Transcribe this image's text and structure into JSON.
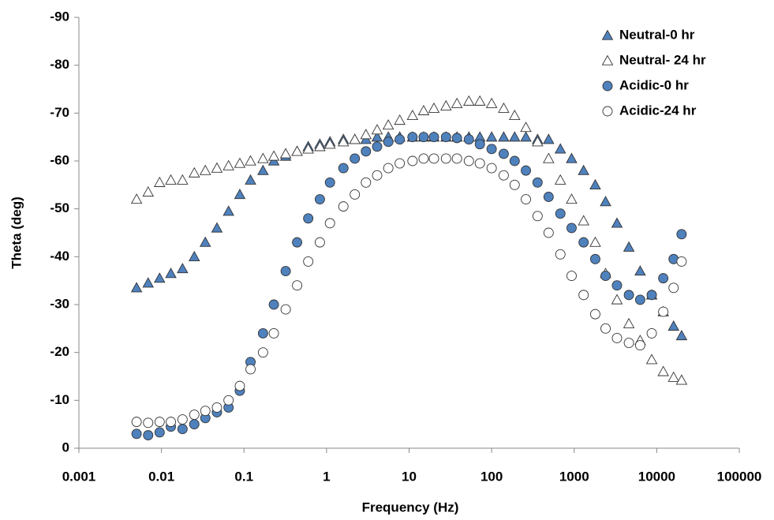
{
  "chart_data": {
    "type": "scatter",
    "x_label": "Frequency (Hz)",
    "y_label": "Theta (deg)",
    "x_scale": "log",
    "xlim": [
      0.001,
      100000
    ],
    "xticks": [
      0.001,
      0.01,
      0.1,
      1,
      10,
      100,
      1000,
      10000,
      100000
    ],
    "ylim": [
      0,
      -90
    ],
    "yticks": [
      0,
      -10,
      -20,
      -30,
      -40,
      -50,
      -60,
      -70,
      -80,
      -90
    ],
    "grid": false,
    "legend": "top-right",
    "x": [
      0.005,
      0.0069,
      0.0095,
      0.013,
      0.018,
      0.025,
      0.034,
      0.047,
      0.065,
      0.089,
      0.12,
      0.17,
      0.23,
      0.32,
      0.44,
      0.6,
      0.83,
      1.1,
      1.6,
      2.2,
      3,
      4.1,
      5.6,
      7.7,
      11,
      15,
      20,
      28,
      38,
      53,
      72,
      100,
      140,
      190,
      260,
      360,
      490,
      680,
      930,
      1300,
      1800,
      2400,
      3300,
      4600,
      6300,
      8700,
      12000,
      16000,
      20000
    ],
    "series": [
      {
        "name": "Neutral-0 hr",
        "marker": "triangle",
        "color": "#4f81bd",
        "values": [
          -33.5,
          -34.5,
          -35.5,
          -36.5,
          -37.5,
          -40,
          -43,
          -46,
          -49.5,
          -53,
          -56,
          -58,
          -60,
          -61,
          -62,
          -63,
          -63.5,
          -64,
          -64.5,
          -64.5,
          -64.5,
          -65,
          -65,
          -65,
          -65,
          -65,
          -65,
          -65,
          -65,
          -65,
          -65,
          -65,
          -65,
          -65,
          -65,
          -64.5,
          -64.5,
          -62.5,
          -60.5,
          -58,
          -55,
          -51.5,
          -47,
          -42,
          -37,
          -32,
          -28.5,
          -25.5,
          -23.5
        ]
      },
      {
        "name": "Neutral- 24 hr",
        "marker": "triangle",
        "color": "#ffffff",
        "values": [
          -52,
          -53.5,
          -55.5,
          -56,
          -56,
          -57.5,
          -58,
          -58.5,
          -59,
          -59.5,
          -60,
          -60.5,
          -61,
          -61.5,
          -62,
          -62.5,
          -63,
          -63.5,
          -64,
          -64.5,
          -65.5,
          -66.5,
          -67.5,
          -68.5,
          -69.5,
          -70.5,
          -71,
          -71.5,
          -72,
          -72.5,
          -72.5,
          -72,
          -71,
          -69.5,
          -67,
          -64,
          -60.5,
          -56,
          -52,
          -47.5,
          -43,
          -36.5,
          -31,
          -26,
          -22.5,
          -18.5,
          -16,
          -14.8,
          -14.2
        ]
      },
      {
        "name": "Acidic-0 hr",
        "marker": "circle",
        "color": "#4f81bd",
        "values": [
          -3,
          -2.7,
          -3.3,
          -4.5,
          -4,
          -5,
          -6.3,
          -7.5,
          -8.5,
          -12,
          -18,
          -24,
          -30,
          -37,
          -43,
          -48,
          -52,
          -55.5,
          -58.5,
          -60.5,
          -62,
          -63,
          -64,
          -64.5,
          -65,
          -65,
          -65,
          -65,
          -64.8,
          -64.5,
          -63.5,
          -62.5,
          -61.5,
          -60,
          -58,
          -55.5,
          -52.5,
          -49,
          -46,
          -43,
          -39.5,
          -36,
          -34,
          -32,
          -31,
          -32,
          -35.5,
          -39.5,
          -44.7
        ]
      },
      {
        "name": "Acidic-24 hr",
        "marker": "circle",
        "color": "#ffffff",
        "values": [
          -5.5,
          -5.3,
          -5.5,
          -5.5,
          -6,
          -7,
          -7.8,
          -8.5,
          -10,
          -13,
          -16.5,
          -20,
          -24,
          -29,
          -34,
          -39,
          -43,
          -47,
          -50.5,
          -53,
          -55.5,
          -57,
          -58.5,
          -59.5,
          -60,
          -60.5,
          -60.5,
          -60.5,
          -60.5,
          -60,
          -59.5,
          -58.5,
          -57,
          -55,
          -52,
          -48.5,
          -45,
          -40.5,
          -36,
          -32,
          -28,
          -25,
          -23,
          -22,
          -21.5,
          -24,
          -28.5,
          -33.5,
          -39
        ]
      }
    ]
  }
}
